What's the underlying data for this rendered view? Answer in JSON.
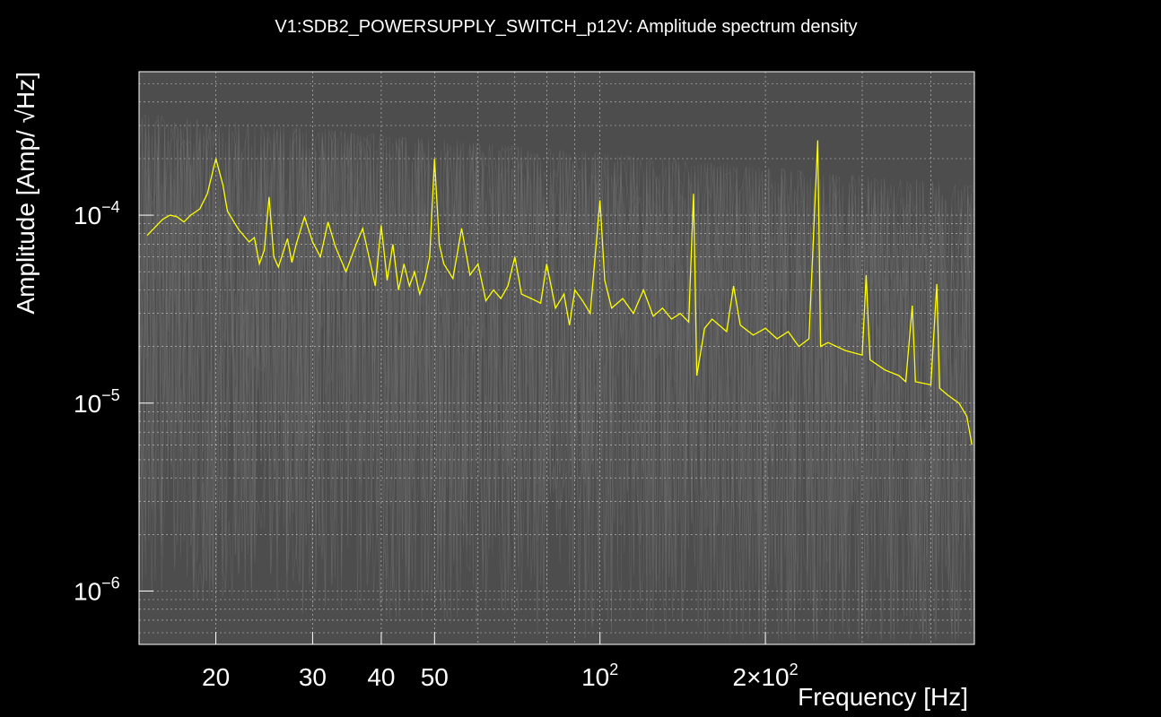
{
  "chart_data": {
    "type": "line",
    "title": "V1:SDB2_POWERSUPPLY_SWITCH_p12V: Amplitude spectrum density",
    "xlabel": "Frequency [Hz]",
    "ylabel": "Amplitude [Amp/ √Hz]",
    "xscale": "log",
    "yscale": "log",
    "xlim": [
      14.5,
      480
    ],
    "ylim": [
      5.2e-07,
      0.00058
    ],
    "grid": true,
    "x_ticks": [
      {
        "value": 20,
        "label": "20"
      },
      {
        "value": 30,
        "label": "30"
      },
      {
        "value": 40,
        "label": "40"
      },
      {
        "value": 50,
        "label": "50"
      },
      {
        "value": 100,
        "label": "10",
        "exponent": "2"
      },
      {
        "value": 200,
        "label": "2×10",
        "exponent": "2"
      }
    ],
    "y_ticks": [
      {
        "value": 0.0001,
        "label": "10",
        "exponent": "−4"
      },
      {
        "value": 1e-05,
        "label": "10",
        "exponent": "−5"
      },
      {
        "value": 1e-06,
        "label": "10",
        "exponent": "−6"
      }
    ],
    "colors": {
      "background": "#000000",
      "plot_area": "#4d4d4d",
      "history": "#6e6e6e",
      "series": "#ffff00",
      "grid": "#ffffff"
    },
    "series": [
      {
        "color": "#ffff00",
        "points": [
          [
            15,
            7.8e-05
          ],
          [
            16,
            9.5e-05
          ],
          [
            16.5,
            0.0001
          ],
          [
            17,
            9.8e-05
          ],
          [
            17.5,
            9.2e-05
          ],
          [
            18,
            0.0001
          ],
          [
            18.7,
            0.000108
          ],
          [
            19.3,
            0.00013
          ],
          [
            20,
            0.0002
          ],
          [
            20.6,
            0.000145
          ],
          [
            21,
            0.000105
          ],
          [
            22,
            8.4e-05
          ],
          [
            23,
            7.2e-05
          ],
          [
            23.5,
            7.6e-05
          ],
          [
            24,
            5.5e-05
          ],
          [
            24.5,
            6.5e-05
          ],
          [
            25,
            0.000125
          ],
          [
            25.5,
            6e-05
          ],
          [
            26,
            5.3e-05
          ],
          [
            27,
            7.5e-05
          ],
          [
            27.5,
            5.6e-05
          ],
          [
            28,
            7e-05
          ],
          [
            29,
            9.8e-05
          ],
          [
            30,
            7.2e-05
          ],
          [
            31,
            6e-05
          ],
          [
            32,
            9.2e-05
          ],
          [
            33,
            6.8e-05
          ],
          [
            34.5,
            5e-05
          ],
          [
            36,
            7e-05
          ],
          [
            37,
            8.5e-05
          ],
          [
            38,
            6e-05
          ],
          [
            39,
            4.2e-05
          ],
          [
            40,
            8.8e-05
          ],
          [
            41,
            4.5e-05
          ],
          [
            42,
            7e-05
          ],
          [
            43,
            4e-05
          ],
          [
            44,
            5.5e-05
          ],
          [
            45,
            4.2e-05
          ],
          [
            46,
            5e-05
          ],
          [
            47,
            3.8e-05
          ],
          [
            48,
            4.5e-05
          ],
          [
            49,
            6e-05
          ],
          [
            50,
            0.0002
          ],
          [
            51,
            7e-05
          ],
          [
            52,
            5.5e-05
          ],
          [
            54,
            4.6e-05
          ],
          [
            56,
            8.5e-05
          ],
          [
            58,
            4.8e-05
          ],
          [
            60,
            5.5e-05
          ],
          [
            62,
            3.5e-05
          ],
          [
            64,
            4e-05
          ],
          [
            66,
            3.6e-05
          ],
          [
            68,
            4.2e-05
          ],
          [
            70,
            6e-05
          ],
          [
            72,
            3.8e-05
          ],
          [
            75,
            3.6e-05
          ],
          [
            78,
            3.4e-05
          ],
          [
            80,
            5.5e-05
          ],
          [
            83,
            3.2e-05
          ],
          [
            86,
            3.8e-05
          ],
          [
            88,
            2.6e-05
          ],
          [
            90,
            4e-05
          ],
          [
            93,
            3.5e-05
          ],
          [
            96,
            3e-05
          ],
          [
            100,
            0.00012
          ],
          [
            102,
            4.5e-05
          ],
          [
            105,
            3.2e-05
          ],
          [
            110,
            3.6e-05
          ],
          [
            115,
            3e-05
          ],
          [
            120,
            4e-05
          ],
          [
            125,
            2.9e-05
          ],
          [
            130,
            3.2e-05
          ],
          [
            135,
            2.8e-05
          ],
          [
            140,
            3e-05
          ],
          [
            145,
            2.7e-05
          ],
          [
            148,
            0.00013
          ],
          [
            150,
            1.4e-05
          ],
          [
            155,
            2.5e-05
          ],
          [
            160,
            2.8e-05
          ],
          [
            170,
            2.4e-05
          ],
          [
            175,
            4.2e-05
          ],
          [
            180,
            2.6e-05
          ],
          [
            190,
            2.3e-05
          ],
          [
            200,
            2.5e-05
          ],
          [
            210,
            2.2e-05
          ],
          [
            220,
            2.4e-05
          ],
          [
            230,
            2e-05
          ],
          [
            240,
            2.2e-05
          ],
          [
            249,
            0.00025
          ],
          [
            252,
            2e-05
          ],
          [
            260,
            2.1e-05
          ],
          [
            280,
            1.9e-05
          ],
          [
            300,
            1.8e-05
          ],
          [
            305,
            4.8e-05
          ],
          [
            310,
            1.7e-05
          ],
          [
            330,
            1.5e-05
          ],
          [
            350,
            1.4e-05
          ],
          [
            360,
            1.3e-05
          ],
          [
            370,
            3.3e-05
          ],
          [
            375,
            1.3e-05
          ],
          [
            400,
            1.25e-05
          ],
          [
            410,
            4.3e-05
          ],
          [
            415,
            1.2e-05
          ],
          [
            430,
            1.1e-05
          ],
          [
            450,
            1e-05
          ],
          [
            465,
            8.5e-06
          ],
          [
            475,
            6e-06
          ]
        ]
      }
    ]
  }
}
